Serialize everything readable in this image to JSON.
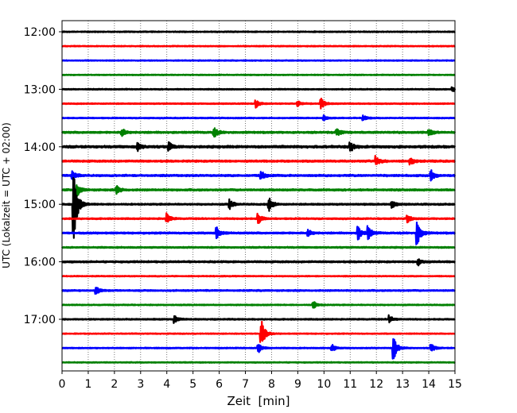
{
  "chart_data": {
    "type": "line",
    "subtype": "helicorder",
    "title": "",
    "xlabel": "Zeit  [min]",
    "ylabel": "UTC (Lokalzeit = UTC + 02:00)",
    "xlim": [
      0,
      15
    ],
    "x_ticks": [
      "0",
      "1",
      "2",
      "3",
      "4",
      "5",
      "6",
      "7",
      "8",
      "9",
      "10",
      "11",
      "12",
      "13",
      "14",
      "15"
    ],
    "y_tick_labels": [
      "12:00",
      "13:00",
      "14:00",
      "15:00",
      "16:00",
      "17:00"
    ],
    "grid": "vertical-dotted",
    "colors": [
      "#000000",
      "#ff0000",
      "#0000ff",
      "#008000"
    ],
    "traces": [
      {
        "start": "12:00",
        "color": "#000000",
        "noise": 0.35,
        "events": []
      },
      {
        "start": "12:15",
        "color": "#ff0000",
        "noise": 0.3,
        "events": []
      },
      {
        "start": "12:30",
        "color": "#0000ff",
        "noise": 0.3,
        "events": []
      },
      {
        "start": "12:45",
        "color": "#008000",
        "noise": 0.3,
        "events": []
      },
      {
        "start": "13:00",
        "color": "#000000",
        "noise": 0.35,
        "events": [
          {
            "t": 14.9,
            "a": 2
          }
        ]
      },
      {
        "start": "13:15",
        "color": "#ff0000",
        "noise": 0.35,
        "events": [
          {
            "t": 7.4,
            "a": 3
          },
          {
            "t": 9.0,
            "a": 2
          },
          {
            "t": 9.9,
            "a": 4
          }
        ]
      },
      {
        "start": "13:30",
        "color": "#0000ff",
        "noise": 0.35,
        "events": [
          {
            "t": 10.0,
            "a": 2
          },
          {
            "t": 11.5,
            "a": 2
          }
        ]
      },
      {
        "start": "13:45",
        "color": "#008000",
        "noise": 0.6,
        "events": [
          {
            "t": 2.3,
            "a": 3
          },
          {
            "t": 5.8,
            "a": 4
          },
          {
            "t": 10.5,
            "a": 3
          },
          {
            "t": 14.0,
            "a": 3
          }
        ]
      },
      {
        "start": "14:00",
        "color": "#000000",
        "noise": 0.75,
        "events": [
          {
            "t": 2.9,
            "a": 3
          },
          {
            "t": 4.1,
            "a": 3
          },
          {
            "t": 11.0,
            "a": 4
          }
        ]
      },
      {
        "start": "14:15",
        "color": "#ff0000",
        "noise": 0.6,
        "events": [
          {
            "t": 12.0,
            "a": 4
          },
          {
            "t": 13.3,
            "a": 3
          }
        ]
      },
      {
        "start": "14:30",
        "color": "#0000ff",
        "noise": 0.6,
        "events": [
          {
            "t": 0.4,
            "a": 4
          },
          {
            "t": 7.6,
            "a": 4
          },
          {
            "t": 14.1,
            "a": 4
          }
        ]
      },
      {
        "start": "14:45",
        "color": "#008000",
        "noise": 0.6,
        "events": [
          {
            "t": 0.6,
            "a": 4
          },
          {
            "t": 2.1,
            "a": 3
          }
        ]
      },
      {
        "start": "15:00",
        "color": "#000000",
        "noise": 0.5,
        "events": [
          {
            "t": 0.45,
            "a": 30
          },
          {
            "t": 6.4,
            "a": 4
          },
          {
            "t": 7.9,
            "a": 6
          },
          {
            "t": 12.6,
            "a": 3
          }
        ]
      },
      {
        "start": "15:15",
        "color": "#ff0000",
        "noise": 0.45,
        "events": [
          {
            "t": 4.0,
            "a": 4
          },
          {
            "t": 7.5,
            "a": 4
          },
          {
            "t": 13.2,
            "a": 3
          }
        ]
      },
      {
        "start": "15:30",
        "color": "#0000ff",
        "noise": 0.55,
        "events": [
          {
            "t": 5.9,
            "a": 5
          },
          {
            "t": 9.4,
            "a": 3
          },
          {
            "t": 11.3,
            "a": 6
          },
          {
            "t": 11.7,
            "a": 5
          },
          {
            "t": 13.55,
            "a": 12
          }
        ]
      },
      {
        "start": "15:45",
        "color": "#008000",
        "noise": 0.45,
        "events": []
      },
      {
        "start": "16:00",
        "color": "#000000",
        "noise": 0.55,
        "events": [
          {
            "t": 13.6,
            "a": 3
          }
        ]
      },
      {
        "start": "16:15",
        "color": "#ff0000",
        "noise": 0.3,
        "events": []
      },
      {
        "start": "16:30",
        "color": "#0000ff",
        "noise": 0.45,
        "events": [
          {
            "t": 1.3,
            "a": 3
          }
        ]
      },
      {
        "start": "16:45",
        "color": "#008000",
        "noise": 0.35,
        "events": [
          {
            "t": 9.6,
            "a": 3
          }
        ]
      },
      {
        "start": "17:00",
        "color": "#000000",
        "noise": 0.4,
        "events": [
          {
            "t": 4.3,
            "a": 3
          },
          {
            "t": 12.5,
            "a": 3
          }
        ]
      },
      {
        "start": "17:15",
        "color": "#ff0000",
        "noise": 0.3,
        "events": [
          {
            "t": 7.6,
            "a": 12
          }
        ]
      },
      {
        "start": "17:30",
        "color": "#0000ff",
        "noise": 0.35,
        "events": [
          {
            "t": 7.5,
            "a": 4
          },
          {
            "t": 10.3,
            "a": 3
          },
          {
            "t": 12.65,
            "a": 11
          },
          {
            "t": 14.1,
            "a": 3
          }
        ]
      },
      {
        "start": "17:45",
        "color": "#008000",
        "noise": 0.3,
        "events": []
      }
    ]
  }
}
